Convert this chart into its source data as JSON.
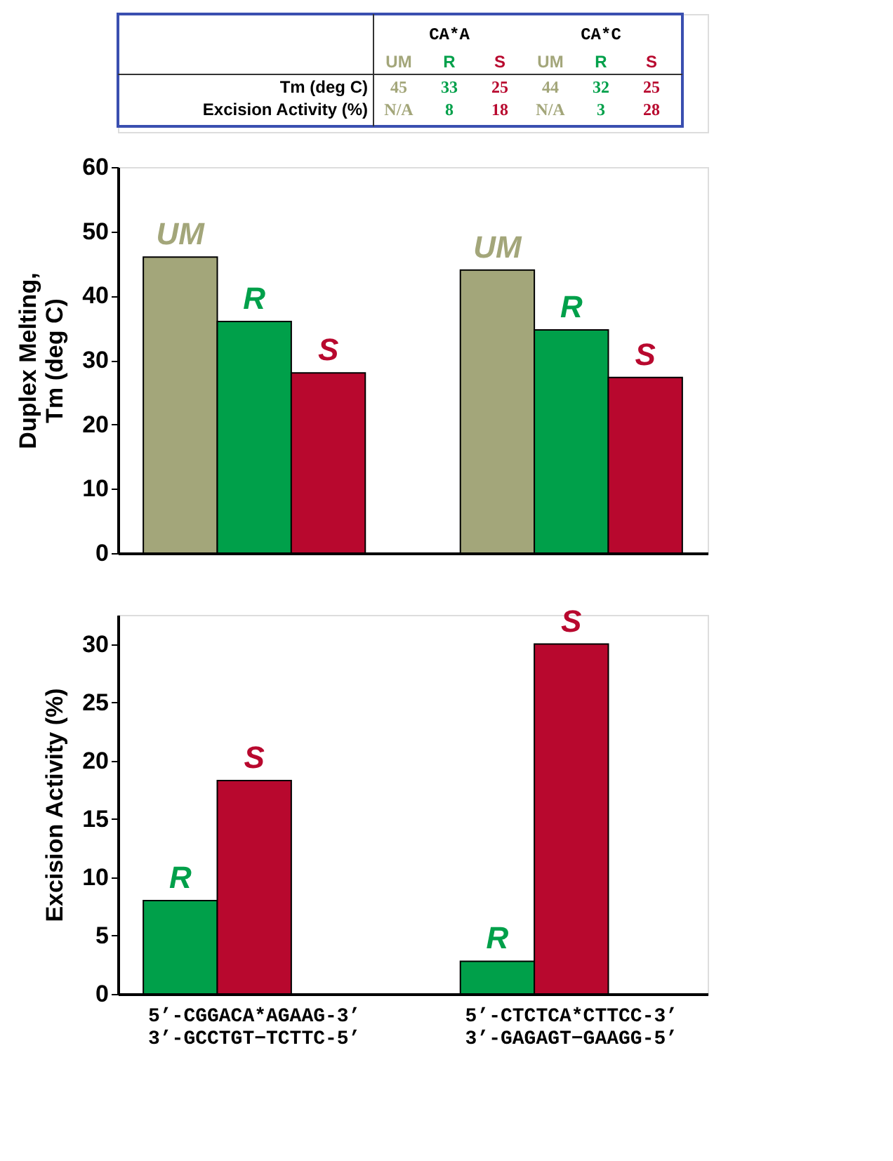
{
  "chart_data": [
    {
      "type": "bar",
      "ylabel": "Duplex Melting,\nTm (deg C)",
      "categories": [
        null,
        null
      ],
      "series": [
        {
          "name": "UM",
          "color": "#a3a67a",
          "values": [
            46,
            44
          ]
        },
        {
          "name": "R",
          "color": "#00a04a",
          "values": [
            36,
            34.7
          ]
        },
        {
          "name": "S",
          "color": "#b8082e",
          "values": [
            28,
            27.3
          ]
        }
      ],
      "ylim": [
        0,
        60
      ],
      "yticks": [
        0,
        10,
        20,
        30,
        40,
        50,
        60
      ],
      "grid": false,
      "annotations": [
        "CA*A",
        "CA*C",
        "UM",
        "R",
        "S",
        "UM",
        "R",
        "S",
        "Tm (deg C)",
        "45",
        "33",
        "25",
        "44",
        "32",
        "25",
        "Excision Activity (%)",
        "N/A",
        "8",
        "18",
        "N/A",
        "3",
        "28"
      ]
    },
    {
      "type": "bar",
      "ylabel": "Excision Activity (%)",
      "categories": [
        "5’-CGGACA*AGAAG-3’\n3’-GCCTGT−TCTTC-5’",
        "5’-CTCTCA*CTTCC-3’\n3’-GAGAGT−GAAGG-5’"
      ],
      "series": [
        {
          "name": "R",
          "color": "#00a04a",
          "values": [
            8,
            2.8
          ]
        },
        {
          "name": "S",
          "color": "#b8082e",
          "values": [
            18.3,
            30
          ]
        }
      ],
      "ylim": [
        0,
        32.5
      ],
      "yticks": [
        0,
        5,
        10,
        15,
        20,
        25,
        30
      ],
      "grid": false
    }
  ]
}
